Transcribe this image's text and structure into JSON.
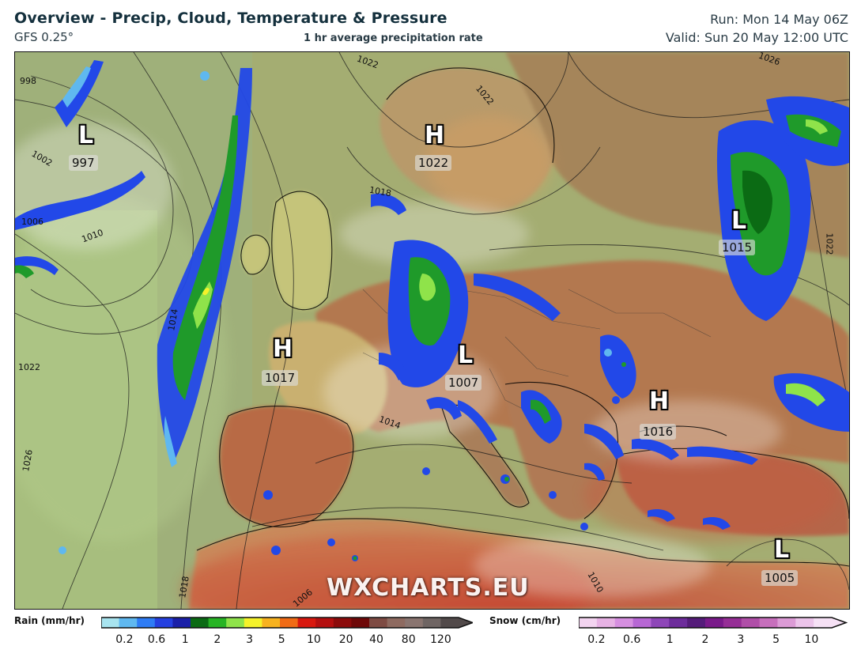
{
  "header": {
    "title": "Overview - Precip, Cloud, Temperature & Pressure",
    "model": "GFS 0.25°",
    "subtitle": "1 hr average precipitation rate",
    "run": "Run: Mon 14 May 06Z",
    "valid": "Valid: Sun 20 May 12:00 UTC"
  },
  "map": {
    "watermark": "WXCHARTS.EU",
    "pressure_centers": [
      {
        "type": "L",
        "value": "997"
      },
      {
        "type": "H",
        "value": "1022"
      },
      {
        "type": "L",
        "value": "1015"
      },
      {
        "type": "H",
        "value": "1017"
      },
      {
        "type": "L",
        "value": "1007"
      },
      {
        "type": "H",
        "value": "1016"
      },
      {
        "type": "L",
        "value": "1005"
      }
    ],
    "isobar_labels": [
      "998",
      "1022",
      "1022",
      "1026",
      "1002",
      "1006",
      "1010",
      "1018",
      "1022",
      "1014",
      "1014",
      "1022",
      "1026",
      "1018",
      "1006",
      "1010"
    ]
  },
  "legend": {
    "rain": {
      "label": "Rain (mm/hr)",
      "colors": [
        "#a8e4ef",
        "#5fb8f0",
        "#2e7cf5",
        "#2540e0",
        "#1a1fa8",
        "#0b6b14",
        "#27b424",
        "#8fe34a",
        "#f5f22a",
        "#f7b21f",
        "#f06b15",
        "#d8180e",
        "#b40f0f",
        "#8c0b0b",
        "#6e0808",
        "#7e4b43",
        "#8e6a60",
        "#8a7570",
        "#6f6563",
        "#524a4a"
      ],
      "ticks": [
        "0.2",
        "0.6",
        "1",
        "2",
        "3",
        "5",
        "10",
        "20",
        "40",
        "80",
        "120"
      ]
    },
    "snow": {
      "label": "Snow (cm/hr)",
      "colors": [
        "#f3d4f0",
        "#e7b2e4",
        "#d68fe0",
        "#b767d4",
        "#8e46b8",
        "#6d2c9b",
        "#551c7a",
        "#7a1a8a",
        "#962e96",
        "#b04ea8",
        "#c76fbc",
        "#dc9bd6",
        "#ecc4ea",
        "#f6e1f5"
      ],
      "ticks": [
        "0.2",
        "0.6",
        "1",
        "2",
        "3",
        "5",
        "10"
      ]
    }
  },
  "colors": {
    "sea_base": "#8f9c6a",
    "land_warm": "#b86a45",
    "land_cool": "#c8c56a",
    "rain_blue": "#2248e8",
    "rain_green": "#1f9a2a"
  }
}
